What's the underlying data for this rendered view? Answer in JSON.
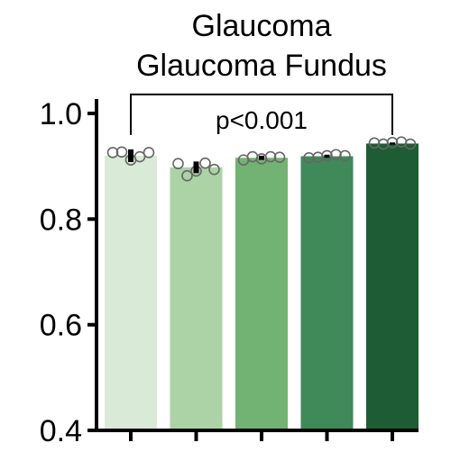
{
  "chart_data": {
    "type": "bar",
    "title": "Glaucoma",
    "subtitle": "Glaucoma Fundus",
    "xlabel": "",
    "ylabel": "",
    "ylim": [
      0.4,
      1.0
    ],
    "yticks": [
      {
        "value": 0.4,
        "label": "0.4"
      },
      {
        "value": 0.6,
        "label": "0.6"
      },
      {
        "value": 0.8,
        "label": "0.8"
      },
      {
        "value": 1.0,
        "label": "1.0"
      }
    ],
    "grid": false,
    "legend": "none",
    "bar_colors": [
      "#d9ead6",
      "#abd3a6",
      "#72b272",
      "#3f8a58",
      "#1d5c34"
    ],
    "values": [
      0.92,
      0.898,
      0.916,
      0.919,
      0.943
    ],
    "errors": [
      0.012,
      0.011,
      0.004,
      0.003,
      0.002
    ],
    "points": [
      [
        0.926,
        0.927,
        0.912,
        0.918,
        0.926
      ],
      [
        0.905,
        0.882,
        0.891,
        0.906,
        0.894
      ],
      [
        0.912,
        0.918,
        0.914,
        0.918,
        0.917
      ],
      [
        0.916,
        0.917,
        0.92,
        0.922,
        0.92
      ],
      [
        0.944,
        0.942,
        0.945,
        0.946,
        0.942
      ]
    ],
    "annotation": {
      "text": "p<0.001",
      "from": 0,
      "to": 4,
      "y": 1.036
    }
  }
}
